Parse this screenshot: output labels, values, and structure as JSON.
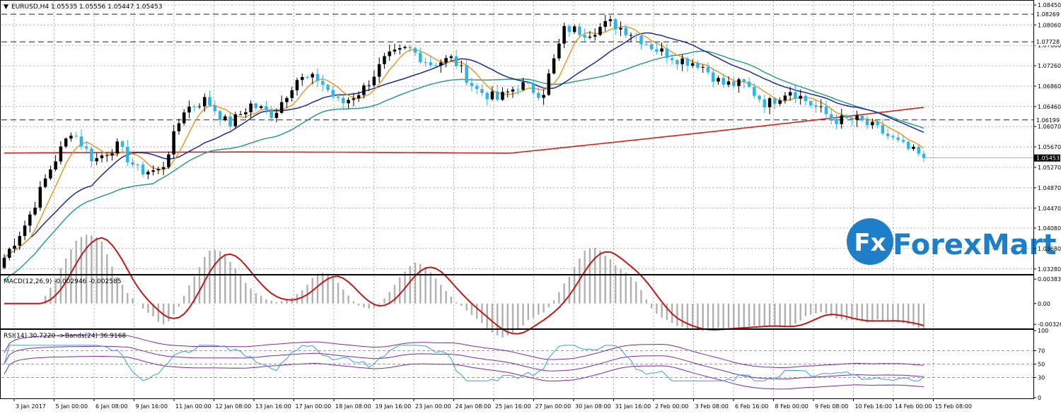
{
  "chart_data": {
    "type": "candlestick",
    "main_panel": {
      "title": "EURUSD,H4  1.05535 1.05556 1.05447 1.05453",
      "y_ticks": [
        "1.08450",
        "1.08060",
        "1.07660",
        "1.07260",
        "1.06860",
        "1.06460",
        "1.06070",
        "1.05670",
        "1.05270",
        "1.04870",
        "1.04470",
        "1.04080",
        "1.03680",
        "1.03280"
      ],
      "ylim": [
        1.0318,
        1.0852
      ],
      "level_lines": [
        {
          "value": 1.08269,
          "label": "1.08269"
        },
        {
          "value": 1.07728,
          "label": "1.07728"
        },
        {
          "value": 1.06199,
          "label": "1.06199"
        }
      ],
      "current_price": {
        "value": 1.05453,
        "label": "1.05453"
      },
      "bull_color": "#000000",
      "bear_color": "#2fb4e6",
      "ma_colors": {
        "orange": "#e69a2c",
        "navy": "#1f2a8c",
        "teal": "#2a9a8c",
        "red": "#d02020"
      }
    },
    "macd_panel": {
      "title": "MACD(12,26,9) -0.002946 -0.002585",
      "y_ticks": [
        "0.003837",
        "0.00",
        "-0.003265"
      ],
      "ylim": [
        -0.0038,
        0.0043
      ],
      "histogram_color": "#b0b0b0",
      "signal_color": "#c01818"
    },
    "rsi_panel": {
      "title": "RSI(14) 30.7220  ->Bands(24) 36.9168",
      "y_ticks": [
        "100",
        "70",
        "50",
        "30",
        "0"
      ],
      "ylim": [
        0,
        100
      ],
      "level_lines": [
        70,
        50,
        30
      ],
      "rsi_color": "#3a9ad9",
      "band_color": "#7a2a9a"
    },
    "x_ticks": [
      "3 Jan 2017",
      "5 Jan 00:00",
      "6 Jan 08:00",
      "9 Jan 16:00",
      "11 Jan 00:00",
      "12 Jan 08:00",
      "13 Jan 16:00",
      "17 Jan 00:00",
      "18 Jan 08:00",
      "19 Jan 16:00",
      "23 Jan 00:00",
      "24 Jan 08:00",
      "25 Jan 16:00",
      "27 Jan 00:00",
      "30 Jan 08:00",
      "31 Jan 16:00",
      "2 Feb 00:00",
      "3 Feb 08:00",
      "6 Feb 16:00",
      "8 Feb 00:00",
      "9 Feb 08:00",
      "10 Feb 16:00",
      "14 Feb 00:00",
      "15 Feb 08:00"
    ],
    "key_closes": [
      1.035,
      1.042,
      1.052,
      1.06,
      1.054,
      1.057,
      1.052,
      1.052,
      1.064,
      1.066,
      1.061,
      1.065,
      1.063,
      1.07,
      1.07,
      1.065,
      1.068,
      1.074,
      1.076,
      1.073,
      1.074,
      1.068,
      1.066,
      1.069,
      1.067,
      1.08,
      1.079,
      1.081,
      1.079,
      1.076,
      1.074,
      1.073,
      1.069,
      1.069,
      1.065,
      1.068,
      1.065,
      1.062,
      1.062,
      1.06,
      1.057,
      1.0545
    ]
  },
  "watermark": {
    "text": "ForexMart",
    "mark": "Fx"
  },
  "colors": {
    "grid": "#7f7f7f",
    "axis": "#000000",
    "brand": "#1e7fc8"
  }
}
